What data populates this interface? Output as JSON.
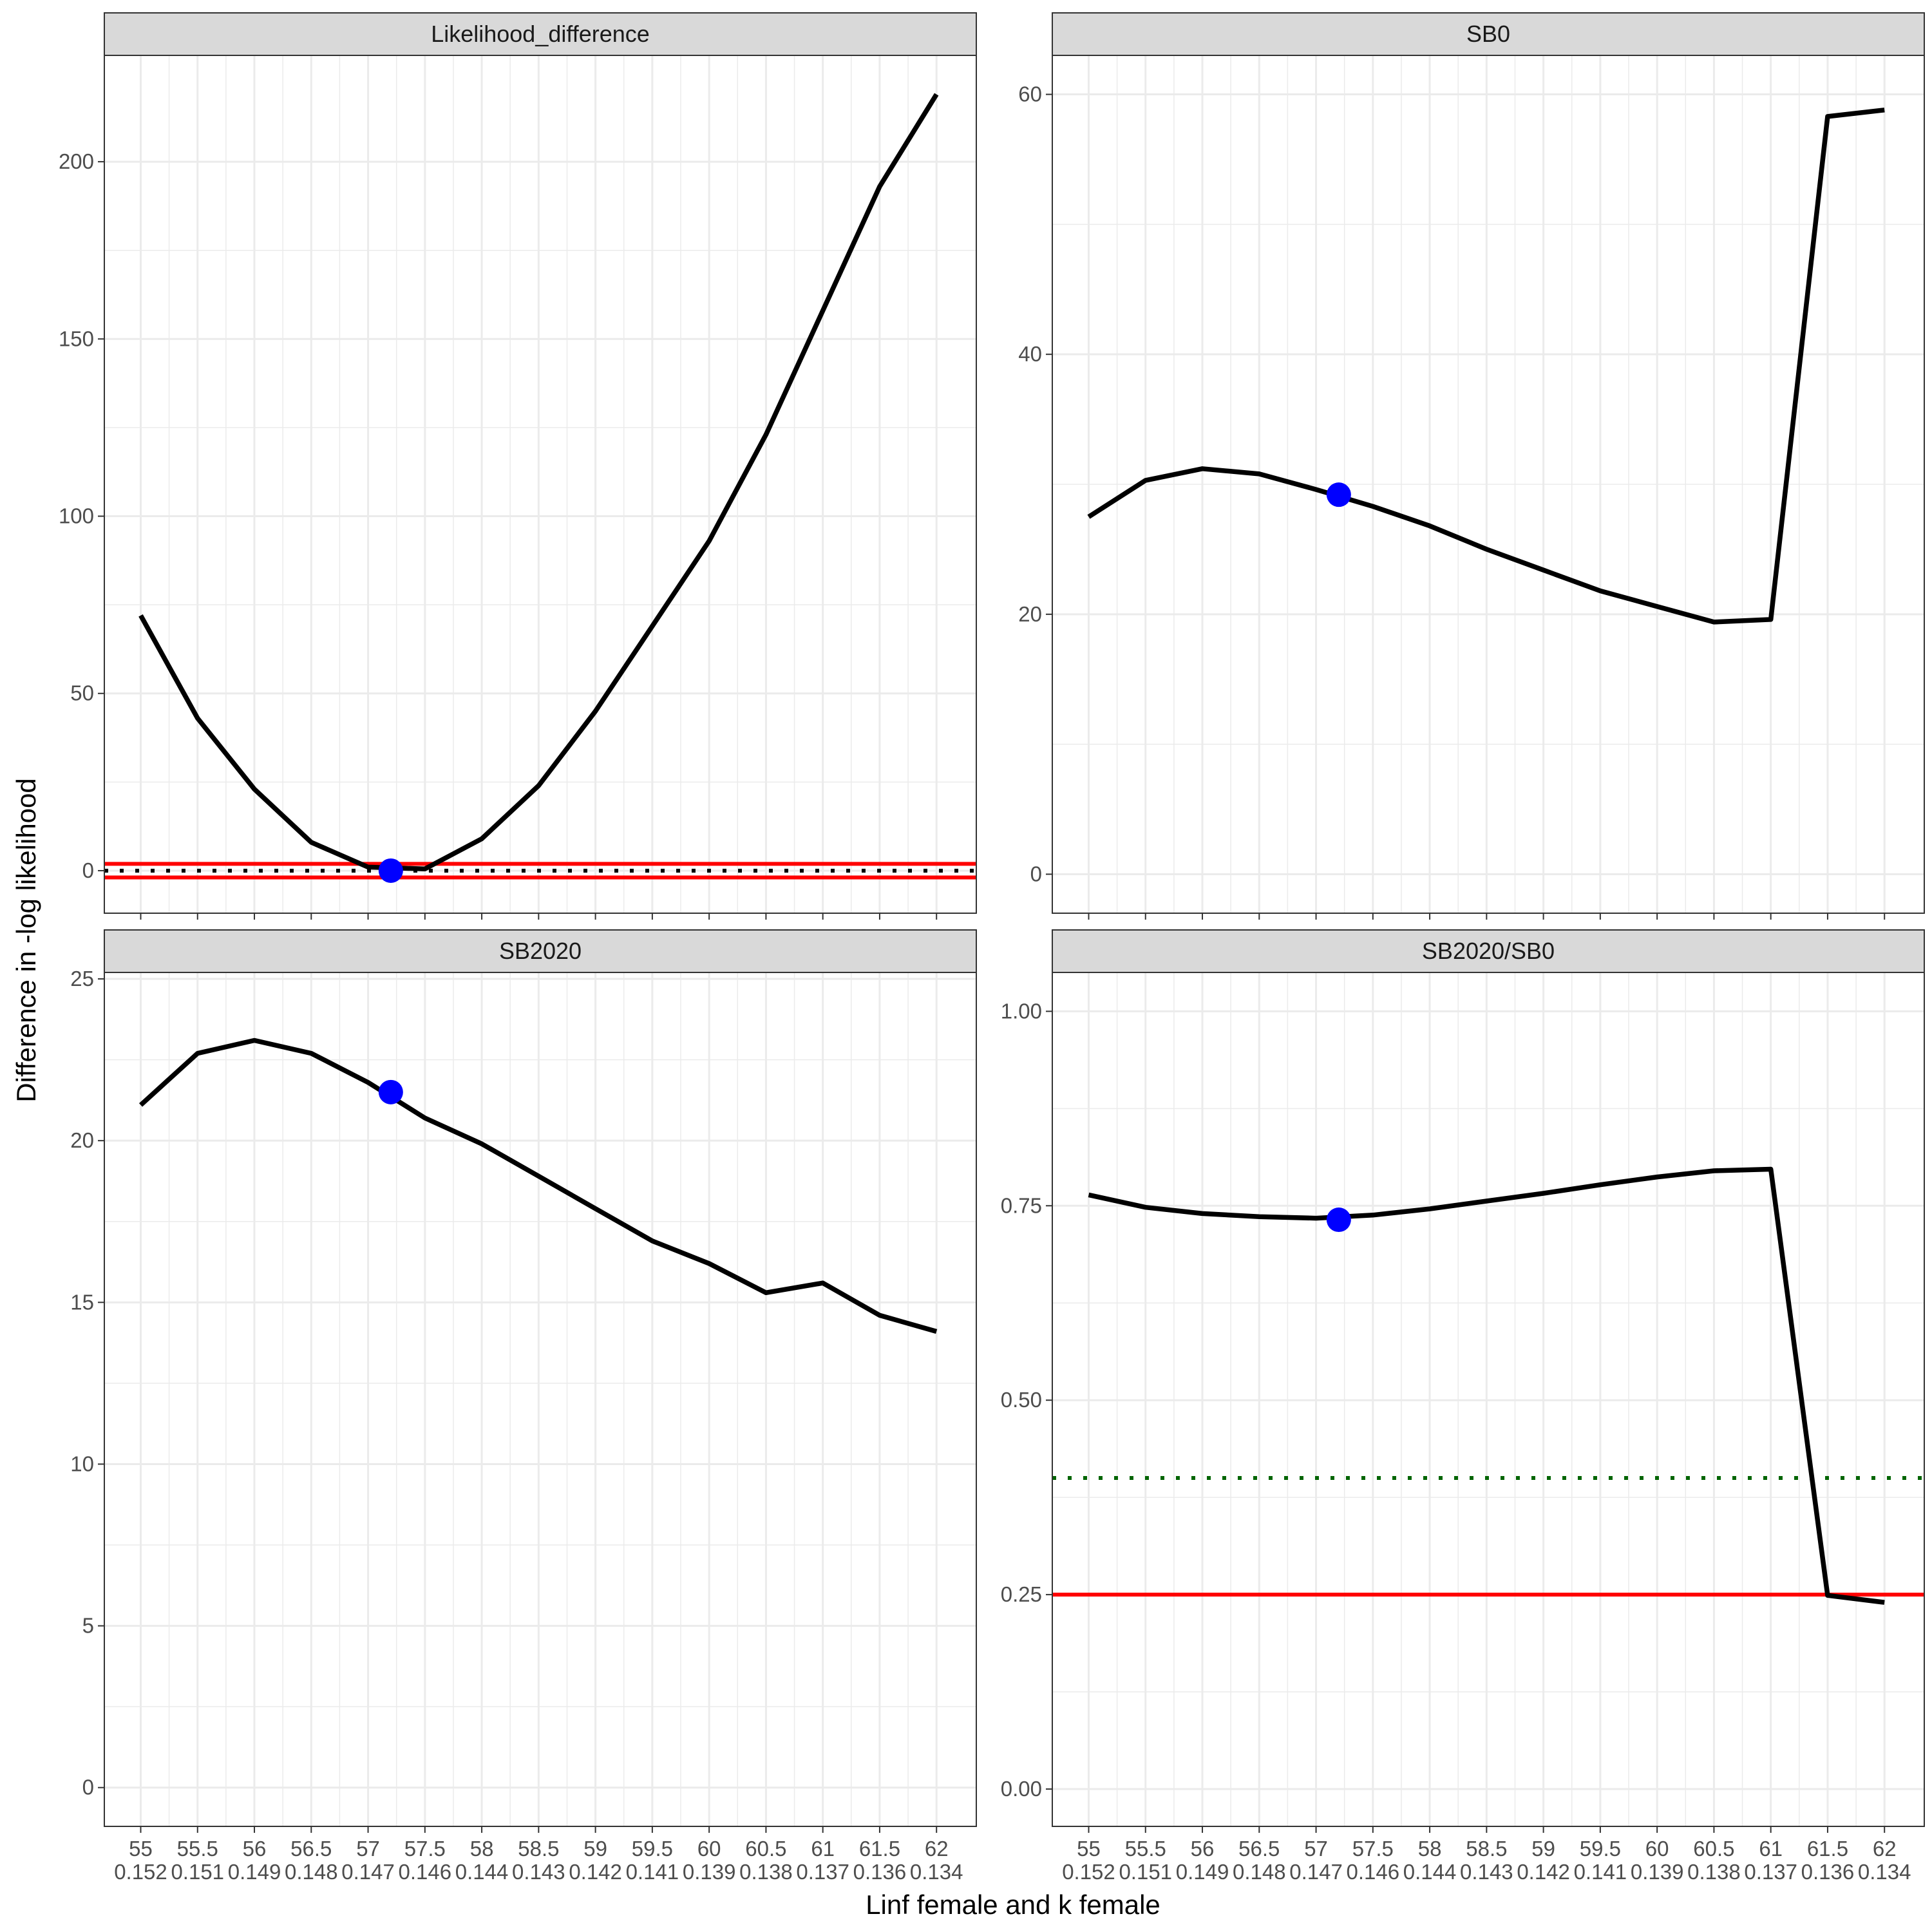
{
  "xlabel": "Linf female and k female",
  "ylabel": "Difference in -log likelihood",
  "x_ticks": [
    {
      "top": "55",
      "bottom": "0.152"
    },
    {
      "top": "55.5",
      "bottom": "0.151"
    },
    {
      "top": "56",
      "bottom": "0.149"
    },
    {
      "top": "56.5",
      "bottom": "0.148"
    },
    {
      "top": "57",
      "bottom": "0.147"
    },
    {
      "top": "57.5",
      "bottom": "0.146"
    },
    {
      "top": "58",
      "bottom": "0.144"
    },
    {
      "top": "58.5",
      "bottom": "0.143"
    },
    {
      "top": "59",
      "bottom": "0.142"
    },
    {
      "top": "59.5",
      "bottom": "0.141"
    },
    {
      "top": "60",
      "bottom": "0.139"
    },
    {
      "top": "60.5",
      "bottom": "0.138"
    },
    {
      "top": "61",
      "bottom": "0.137"
    },
    {
      "top": "61.5",
      "bottom": "0.136"
    },
    {
      "top": "62",
      "bottom": "0.134"
    }
  ],
  "colors": {
    "line": "#000000",
    "point": "#0000ff",
    "red_line": "#ff0000",
    "green_dotted": "#006400",
    "black_dotted": "#000000",
    "strip_bg": "#d9d9d9",
    "grid": "#ebebeb"
  },
  "chart_data": [
    {
      "type": "line",
      "title": "Likelihood_difference",
      "x": [
        55,
        55.5,
        56,
        56.5,
        57,
        57.5,
        58,
        58.5,
        59,
        59.5,
        60,
        60.5,
        61,
        61.5,
        62
      ],
      "y": [
        72,
        43,
        23,
        8,
        1,
        0.5,
        9,
        24,
        45,
        69,
        93,
        123,
        158,
        193,
        219
      ],
      "xlim": [
        54.68,
        62.35
      ],
      "ylim": [
        -12,
        230
      ],
      "yticks": [
        0,
        50,
        100,
        150,
        200
      ],
      "point": {
        "x": 57.2,
        "y": 0
      },
      "hlines": [
        {
          "y": 1.92,
          "style": "solid",
          "color": "red"
        },
        {
          "y": -1.92,
          "style": "solid",
          "color": "red"
        },
        {
          "y": 0,
          "style": "dotted",
          "color": "black"
        }
      ],
      "grid": true
    },
    {
      "type": "line",
      "title": "SB0",
      "x": [
        55,
        55.5,
        56,
        56.5,
        57,
        57.5,
        58,
        58.5,
        59,
        59.5,
        60,
        60.5,
        61,
        61.5,
        62
      ],
      "y": [
        27.5,
        30.3,
        31.2,
        30.8,
        29.6,
        28.3,
        26.8,
        25.0,
        23.4,
        21.8,
        20.6,
        19.4,
        19.6,
        58.3,
        58.8
      ],
      "xlim": [
        54.68,
        62.35
      ],
      "ylim": [
        -3,
        63
      ],
      "yticks": [
        0,
        20,
        40,
        60
      ],
      "point": {
        "x": 57.2,
        "y": 29.2
      },
      "hlines": [],
      "grid": true
    },
    {
      "type": "line",
      "title": "SB2020",
      "x": [
        55,
        55.5,
        56,
        56.5,
        57,
        57.5,
        58,
        58.5,
        59,
        59.5,
        60,
        60.5,
        61,
        61.5,
        62
      ],
      "y": [
        21.1,
        22.7,
        23.1,
        22.7,
        21.8,
        20.7,
        19.9,
        18.9,
        17.9,
        16.9,
        16.2,
        15.3,
        15.6,
        14.6,
        14.1
      ],
      "xlim": [
        54.68,
        62.35
      ],
      "ylim": [
        -1.2,
        25.2
      ],
      "yticks": [
        0,
        5,
        10,
        15,
        20,
        25
      ],
      "point": {
        "x": 57.2,
        "y": 21.5
      },
      "hlines": [],
      "grid": true
    },
    {
      "type": "line",
      "title": "SB2020/SB0",
      "x": [
        55,
        55.5,
        56,
        56.5,
        57,
        57.5,
        58,
        58.5,
        59,
        59.5,
        60,
        60.5,
        61,
        61.5,
        62
      ],
      "y": [
        0.764,
        0.748,
        0.74,
        0.736,
        0.734,
        0.738,
        0.746,
        0.756,
        0.766,
        0.777,
        0.787,
        0.795,
        0.797,
        0.249,
        0.24
      ],
      "xlim": [
        54.68,
        62.35
      ],
      "ylim": [
        -0.048,
        1.05
      ],
      "yticks": [
        0.0,
        0.25,
        0.5,
        0.75,
        1.0
      ],
      "ytick_labels": [
        "0.00",
        "0.25",
        "0.50",
        "0.75",
        "1.00"
      ],
      "point": {
        "x": 57.2,
        "y": 0.732
      },
      "hlines": [
        {
          "y": 0.4,
          "style": "dotted",
          "color": "green"
        },
        {
          "y": 0.25,
          "style": "solid",
          "color": "red"
        }
      ],
      "grid": true
    }
  ]
}
